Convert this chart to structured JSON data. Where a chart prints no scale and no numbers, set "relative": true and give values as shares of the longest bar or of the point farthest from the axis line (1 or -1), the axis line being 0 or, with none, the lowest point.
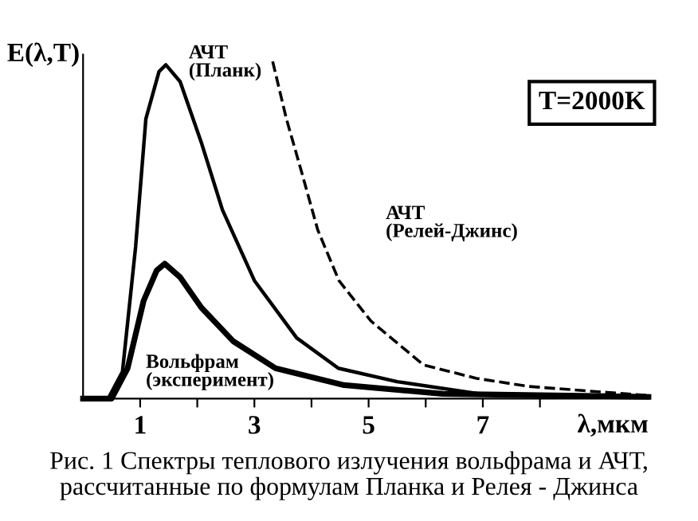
{
  "chart_data": {
    "type": "line",
    "relative": true,
    "ylabel": "E(λ,T)",
    "xlabel": "λ,мкм",
    "xlim": [
      0,
      9.9
    ],
    "xticks": [
      1,
      {
        "value": 2,
        "label": null
      },
      3,
      {
        "value": 4,
        "label": null
      },
      5,
      {
        "value": 6,
        "label": null
      },
      7,
      {
        "value": 8,
        "label": null
      }
    ],
    "grid": false,
    "legend": false,
    "marker": "none",
    "annotations": [
      "T=2000K",
      "Рис. 1 Спектры теплового излучения вольфрама и АЧТ,\nрассчитанные по формулам Планка и Релея - Джинса"
    ],
    "series": [
      {
        "name": "АЧТ\n(Планк)",
        "color": "#000000",
        "line_style": "solid",
        "x": [
          0,
          0.44,
          0.69,
          0.92,
          1.1,
          1.33,
          1.45,
          1.7,
          2.07,
          2.44,
          3.0,
          3.74,
          4.47,
          5.5,
          6.9,
          9.9
        ],
        "values": [
          0,
          0,
          0.08,
          0.45,
          0.83,
          0.97,
          0.99,
          0.94,
          0.76,
          0.56,
          0.35,
          0.18,
          0.09,
          0.05,
          0.015,
          0.005
        ]
      },
      {
        "name": "АЧТ\n(Релей-Джинс)",
        "color": "#000000",
        "line_style": "dashed",
        "x": [
          3.32,
          3.56,
          3.83,
          4.11,
          4.48,
          5.04,
          5.96,
          6.89,
          7.8,
          9.9
        ],
        "values": [
          1.0,
          0.83,
          0.67,
          0.5,
          0.35,
          0.23,
          0.1,
          0.06,
          0.036,
          0.009
        ]
      },
      {
        "name": "Вольфрам\n(эксперимент)",
        "color": "#000000",
        "line_style": "solid",
        "x": [
          0,
          0.5,
          0.78,
          1.06,
          1.29,
          1.43,
          1.7,
          2.07,
          2.63,
          3.37,
          4.57,
          6.3,
          9.9
        ],
        "values": [
          0,
          0,
          0.09,
          0.29,
          0.38,
          0.4,
          0.36,
          0.27,
          0.17,
          0.09,
          0.04,
          0.014,
          0.005
        ]
      }
    ]
  }
}
